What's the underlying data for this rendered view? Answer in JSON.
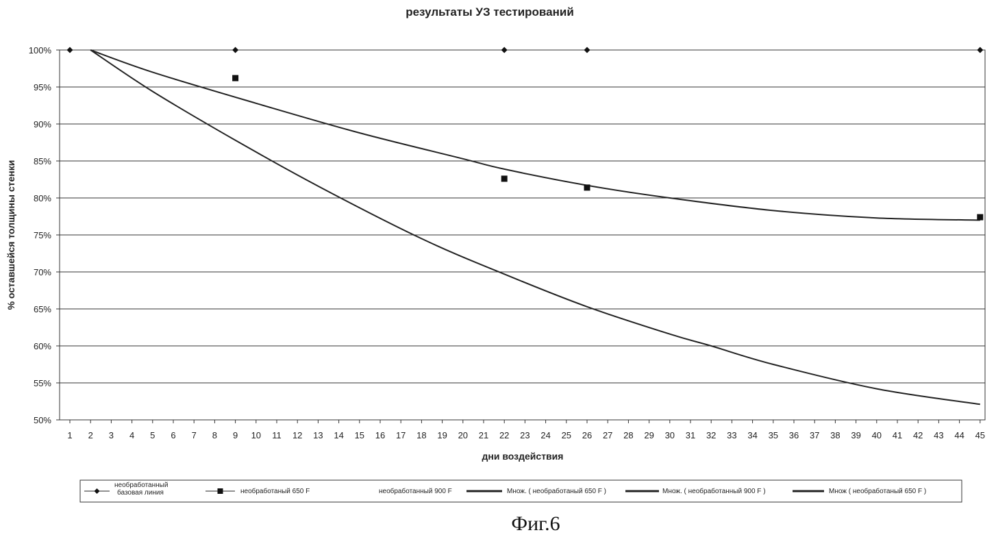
{
  "chart_data": {
    "type": "scatter",
    "title": "результаты УЗ тестирований",
    "xlabel": "дни воздействия",
    "ylabel": "% оставшейся толщины стенки",
    "x_ticks": [
      "1",
      "2",
      "3",
      "4",
      "5",
      "6",
      "7",
      "8",
      "9",
      "10",
      "11",
      "12",
      "13",
      "14",
      "15",
      "16",
      "17",
      "18",
      "19",
      "20",
      "21",
      "22",
      "23",
      "24",
      "25",
      "26",
      "27",
      "28",
      "29",
      "30",
      "31",
      "32",
      "33",
      "34",
      "35",
      "36",
      "37",
      "38",
      "39",
      "40",
      "41",
      "42",
      "43",
      "44",
      "45"
    ],
    "y_ticks": [
      "100%",
      "95%",
      "90%",
      "85%",
      "80%",
      "75%",
      "70%",
      "65%",
      "60%",
      "55%",
      "50%"
    ],
    "xlim": [
      1,
      45
    ],
    "ylim": [
      50,
      100
    ],
    "grid": true,
    "legend_position": "bottom",
    "series": [
      {
        "name": "необработанный базовая линия",
        "marker": "diamond",
        "x": [
          1,
          9,
          22,
          26,
          45
        ],
        "y": [
          100,
          100,
          100,
          100,
          100
        ]
      },
      {
        "name": "необработаный 650 F",
        "marker": "square",
        "x": [
          9,
          22,
          26,
          45
        ],
        "y": [
          96.2,
          82.6,
          81.4,
          77.4
        ]
      },
      {
        "name": "необработанный 900 F",
        "marker": "none",
        "x": [],
        "y": []
      },
      {
        "name": "Множ. ( необработаный 650 F )",
        "marker": "line",
        "x": [
          2,
          5,
          10,
          15,
          20,
          22,
          26,
          30,
          35,
          40,
          45
        ],
        "y": [
          100,
          97,
          92.8,
          88.8,
          85.3,
          83.9,
          81.7,
          80,
          78.3,
          77.3,
          77
        ]
      },
      {
        "name": "Множ. ( необработанный 900 F )",
        "marker": "line",
        "x": [
          2,
          5,
          9,
          13,
          18,
          22,
          26,
          30,
          32,
          35,
          40,
          45
        ],
        "y": [
          100,
          94.4,
          87.8,
          81.6,
          74.5,
          69.7,
          65.3,
          61.6,
          60,
          57.5,
          54.2,
          52.1
        ]
      },
      {
        "name": "Множ ( необработаный 650 F )",
        "marker": "line",
        "x": [],
        "y": []
      }
    ]
  },
  "caption": "Фиг.6"
}
